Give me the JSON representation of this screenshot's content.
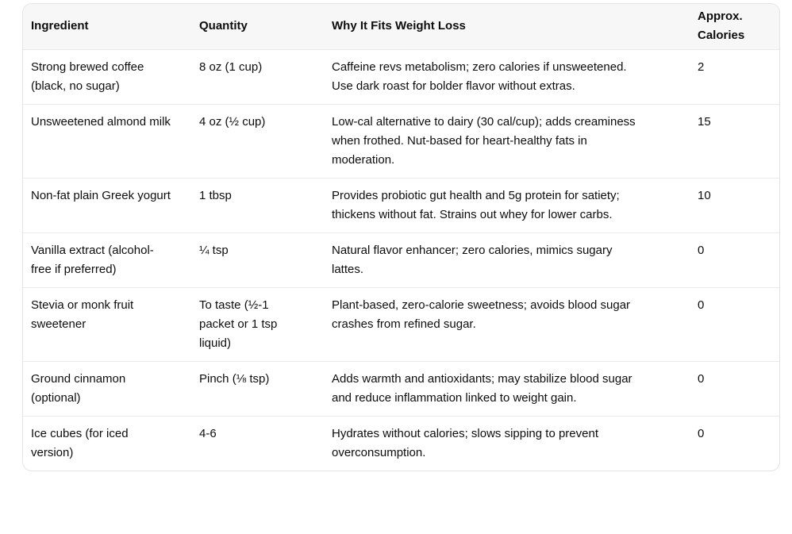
{
  "theme": {
    "text_color": "#0d0d0d",
    "header_background": "#f7f7f8",
    "body_background": "#ffffff",
    "border_color": "#e4e4e7",
    "divider_color": "#eaeaec"
  },
  "table": {
    "headers": [
      "Ingredient",
      "Quantity",
      "Why It Fits Weight Loss",
      "Approx. Calories"
    ],
    "rows": [
      {
        "ingredient": "Strong brewed coffee (black, no sugar)",
        "quantity": "8 oz (1 cup)",
        "why": "Caffeine revs metabolism; zero calories if unsweetened. Use dark roast for bolder flavor without extras.",
        "calories": "2"
      },
      {
        "ingredient": "Unsweetened almond milk",
        "quantity": "4 oz (½ cup)",
        "why": "Low-cal alternative to dairy (30 cal/cup); adds creaminess when frothed. Nut-based for heart-healthy fats in moderation.",
        "calories": "15"
      },
      {
        "ingredient": "Non-fat plain Greek yogurt",
        "quantity": "1 tbsp",
        "why": "Provides probiotic gut health and 5g protein for satiety; thickens without fat. Strains out whey for lower carbs.",
        "calories": "10"
      },
      {
        "ingredient": "Vanilla extract (alcohol-free if preferred)",
        "quantity": "¼ tsp",
        "why": "Natural flavor enhancer; zero calories, mimics sugary lattes.",
        "calories": "0"
      },
      {
        "ingredient": "Stevia or monk fruit sweetener",
        "quantity": "To taste (½-1 packet or 1 tsp liquid)",
        "why": "Plant-based, zero-calorie sweetness; avoids blood sugar crashes from refined sugar.",
        "calories": "0"
      },
      {
        "ingredient": "Ground cinnamon (optional)",
        "quantity": "Pinch (⅛ tsp)",
        "why": "Adds warmth and antioxidants; may stabilize blood sugar and reduce inflammation linked to weight gain.",
        "calories": "0"
      },
      {
        "ingredient": "Ice cubes (for iced version)",
        "quantity": "4-6",
        "why": "Hydrates without calories; slows sipping to prevent overconsumption.",
        "calories": "0"
      }
    ]
  },
  "chart_data": {
    "type": "table",
    "title": "",
    "columns": [
      "Ingredient",
      "Quantity",
      "Why It Fits Weight Loss",
      "Approx. Calories"
    ],
    "rows": [
      [
        "Strong brewed coffee (black, no sugar)",
        "8 oz (1 cup)",
        "Caffeine revs metabolism; zero calories if unsweetened. Use dark roast for bolder flavor without extras.",
        2
      ],
      [
        "Unsweetened almond milk",
        "4 oz (½ cup)",
        "Low-cal alternative to dairy (30 cal/cup); adds creaminess when frothed. Nut-based for heart-healthy fats in moderation.",
        15
      ],
      [
        "Non-fat plain Greek yogurt",
        "1 tbsp",
        "Provides probiotic gut health and 5g protein for satiety; thickens without fat. Strains out whey for lower carbs.",
        10
      ],
      [
        "Vanilla extract (alcohol-free if preferred)",
        "¼ tsp",
        "Natural flavor enhancer; zero calories, mimics sugary lattes.",
        0
      ],
      [
        "Stevia or monk fruit sweetener",
        "To taste (½-1 packet or 1 tsp liquid)",
        "Plant-based, zero-calorie sweetness; avoids blood sugar crashes from refined sugar.",
        0
      ],
      [
        "Ground cinnamon (optional)",
        "Pinch (⅛ tsp)",
        "Adds warmth and antioxidants; may stabilize blood sugar and reduce inflammation linked to weight gain.",
        0
      ],
      [
        "Ice cubes (for iced version)",
        "4-6",
        "Hydrates without calories; slows sipping to prevent overconsumption.",
        0
      ]
    ]
  }
}
